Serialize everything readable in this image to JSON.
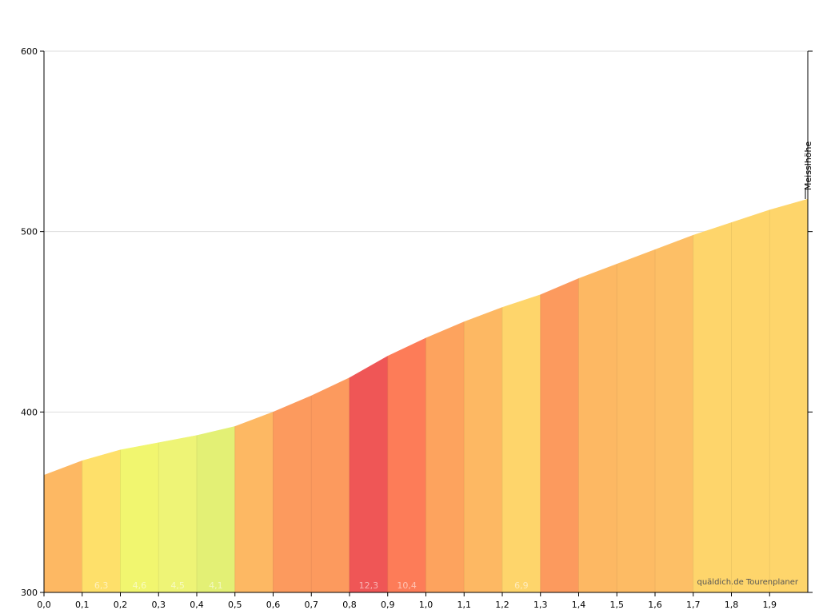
{
  "chart_data": {
    "type": "area",
    "x_unit": "km",
    "y_unit": "m",
    "xlim": [
      0,
      2.0
    ],
    "ylim": [
      300,
      600
    ],
    "x_ticks": [
      "0,0",
      "0,1",
      "0,2",
      "0,3",
      "0,4",
      "0,5",
      "0,6",
      "0,7",
      "0,8",
      "0,9",
      "1,0",
      "1,1",
      "1,2",
      "1,3",
      "1,4",
      "1,5",
      "1,6",
      "1,7",
      "1,8",
      "1,9"
    ],
    "y_ticks": [
      "300",
      "400",
      "500",
      "600"
    ],
    "grid": "horizontal",
    "profile_x": [
      0.0,
      0.1,
      0.2,
      0.3,
      0.4,
      0.5,
      0.6,
      0.7,
      0.8,
      0.9,
      1.0,
      1.1,
      1.2,
      1.3,
      1.4,
      1.5,
      1.6,
      1.7,
      1.8,
      1.9,
      2.0
    ],
    "profile_y": [
      365,
      373,
      379,
      383,
      387,
      392,
      400,
      409,
      419,
      431,
      441,
      450,
      458,
      465,
      474,
      482,
      490,
      498,
      505,
      512,
      518
    ],
    "segments": [
      {
        "label": "",
        "color": "#fdb863"
      },
      {
        "label": "6,3",
        "color": "#fee06a"
      },
      {
        "label": "4,6",
        "color": "#f1f66f"
      },
      {
        "label": "4,5",
        "color": "#eef476"
      },
      {
        "label": "4,1",
        "color": "#e3f075"
      },
      {
        "label": "",
        "color": "#fdb863"
      },
      {
        "label": "",
        "color": "#fc9a5e"
      },
      {
        "label": "",
        "color": "#fc9a5e"
      },
      {
        "label": "12,3",
        "color": "#ef5656"
      },
      {
        "label": "10,4",
        "color": "#fd7c58"
      },
      {
        "label": "",
        "color": "#fda35e"
      },
      {
        "label": "",
        "color": "#fdb863"
      },
      {
        "label": "6,9",
        "color": "#fed56b"
      },
      {
        "label": "",
        "color": "#fc9a5e"
      },
      {
        "label": "",
        "color": "#fdb863"
      },
      {
        "label": "",
        "color": "#fdbb64"
      },
      {
        "label": "",
        "color": "#fdbf66"
      },
      {
        "label": "",
        "color": "#fed56b"
      },
      {
        "label": "",
        "color": "#fed56b"
      },
      {
        "label": "",
        "color": "#fed56b"
      }
    ],
    "marker": {
      "label": "Meisslhöhe",
      "x": 2.0
    },
    "credit": "quäldich.de Tourenplaner"
  }
}
